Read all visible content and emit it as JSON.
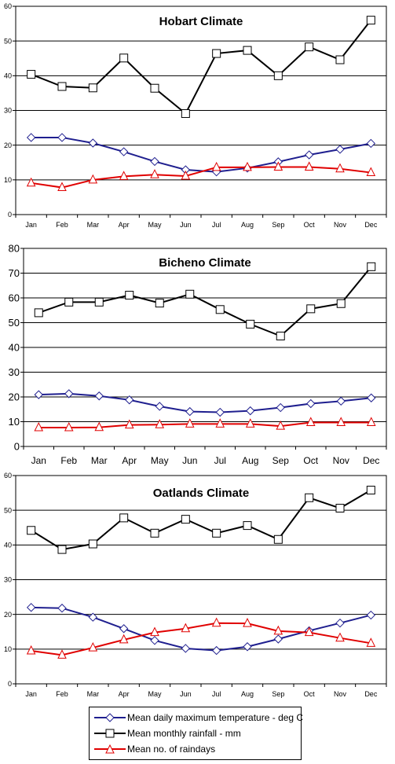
{
  "chart_data": [
    {
      "type": "line",
      "title": "Hobart Climate",
      "categories": [
        "Jan",
        "Feb",
        "Mar",
        "Apr",
        "May",
        "Jun",
        "Jul",
        "Aug",
        "Sep",
        "Oct",
        "Nov",
        "Dec"
      ],
      "ylim": [
        0,
        60
      ],
      "yticks": [
        "0",
        "10",
        "20",
        "30",
        "40",
        "50",
        "60"
      ],
      "grid": true,
      "series": [
        {
          "key": "temp",
          "values": [
            22.2,
            22.2,
            20.6,
            18.1,
            15.3,
            12.9,
            12.3,
            13.4,
            15.2,
            17.2,
            18.8,
            20.5
          ],
          "color": "#1f1f8f",
          "marker": "diamond"
        },
        {
          "key": "rain",
          "values": [
            40.4,
            36.9,
            36.5,
            45.1,
            36.4,
            29.1,
            46.4,
            47.3,
            40.0,
            48.3,
            44.6,
            56.0
          ],
          "color": "#000000",
          "marker": "square"
        },
        {
          "key": "raindays",
          "values": [
            9.1,
            7.8,
            10.0,
            11.0,
            11.5,
            11.1,
            13.6,
            13.6,
            13.7,
            13.7,
            13.2,
            12.1
          ],
          "color": "#e00000",
          "marker": "triangle"
        }
      ]
    },
    {
      "type": "line",
      "title": "Bicheno Climate",
      "categories": [
        "Jan",
        "Feb",
        "Mar",
        "Apr",
        "May",
        "Jun",
        "Jul",
        "Aug",
        "Sep",
        "Oct",
        "Nov",
        "Dec"
      ],
      "ylim": [
        0,
        80
      ],
      "yticks": [
        "0",
        "10",
        "20",
        "30",
        "40",
        "50",
        "60",
        "70",
        "80"
      ],
      "grid": true,
      "series": [
        {
          "key": "temp",
          "values": [
            20.9,
            21.3,
            20.4,
            18.8,
            16.2,
            14.1,
            13.8,
            14.4,
            15.7,
            17.3,
            18.3,
            19.6
          ],
          "color": "#1f1f8f",
          "marker": "diamond"
        },
        {
          "key": "rain",
          "values": [
            54.0,
            58.3,
            58.3,
            61.1,
            57.9,
            61.5,
            55.3,
            49.4,
            44.6,
            55.6,
            57.7,
            72.6
          ],
          "color": "#000000",
          "marker": "square"
        },
        {
          "key": "raindays",
          "values": [
            7.6,
            7.6,
            7.7,
            8.7,
            8.8,
            9.1,
            9.1,
            9.1,
            8.2,
            9.7,
            9.7,
            9.7
          ],
          "color": "#e00000",
          "marker": "triangle"
        }
      ]
    },
    {
      "type": "line",
      "title": "Oatlands Climate",
      "categories": [
        "Jan",
        "Feb",
        "Mar",
        "Apr",
        "May",
        "Jun",
        "Jul",
        "Aug",
        "Sep",
        "Oct",
        "Nov",
        "Dec"
      ],
      "ylim": [
        0,
        60
      ],
      "yticks": [
        "0",
        "10",
        "20",
        "30",
        "40",
        "50",
        "60"
      ],
      "grid": true,
      "series": [
        {
          "key": "temp",
          "values": [
            22.0,
            21.8,
            19.2,
            15.9,
            12.5,
            10.2,
            9.6,
            10.7,
            12.9,
            15.3,
            17.5,
            19.8
          ],
          "color": "#1f1f8f",
          "marker": "diamond"
        },
        {
          "key": "rain",
          "values": [
            44.2,
            38.7,
            40.3,
            47.8,
            43.4,
            47.4,
            43.4,
            45.6,
            41.6,
            53.6,
            50.6,
            55.8
          ],
          "color": "#000000",
          "marker": "square"
        },
        {
          "key": "raindays",
          "values": [
            9.5,
            8.3,
            10.4,
            12.7,
            14.8,
            15.9,
            17.5,
            17.4,
            15.2,
            14.8,
            13.2,
            11.7
          ],
          "color": "#e00000",
          "marker": "triangle"
        }
      ]
    }
  ],
  "legend": {
    "placement": "bottom-center",
    "items": [
      {
        "key": "temp",
        "label": "Mean daily maximum temperature - deg C",
        "color": "#1f1f8f",
        "marker": "diamond"
      },
      {
        "key": "rain",
        "label": "Mean monthly rainfall - mm",
        "color": "#000000",
        "marker": "square"
      },
      {
        "key": "raindays",
        "label": "Mean no. of raindays",
        "color": "#e00000",
        "marker": "triangle"
      }
    ]
  }
}
